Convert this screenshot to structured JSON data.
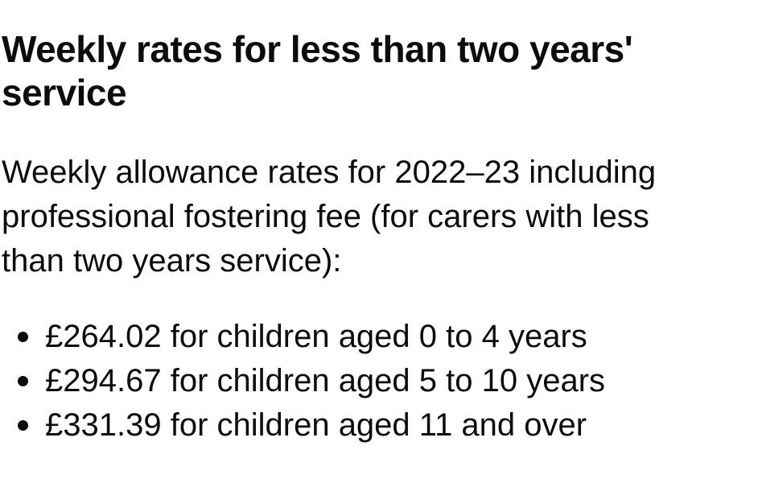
{
  "heading": "Weekly rates for less than two years' service",
  "intro": "Weekly allowance rates for 2022–23 including professional fostering fee (for carers with less than two years service):",
  "items": [
    "£264.02 for children aged 0 to 4 years",
    "£294.67 for children aged 5 to 10 years",
    "£331.39 for children aged 11 and over"
  ]
}
